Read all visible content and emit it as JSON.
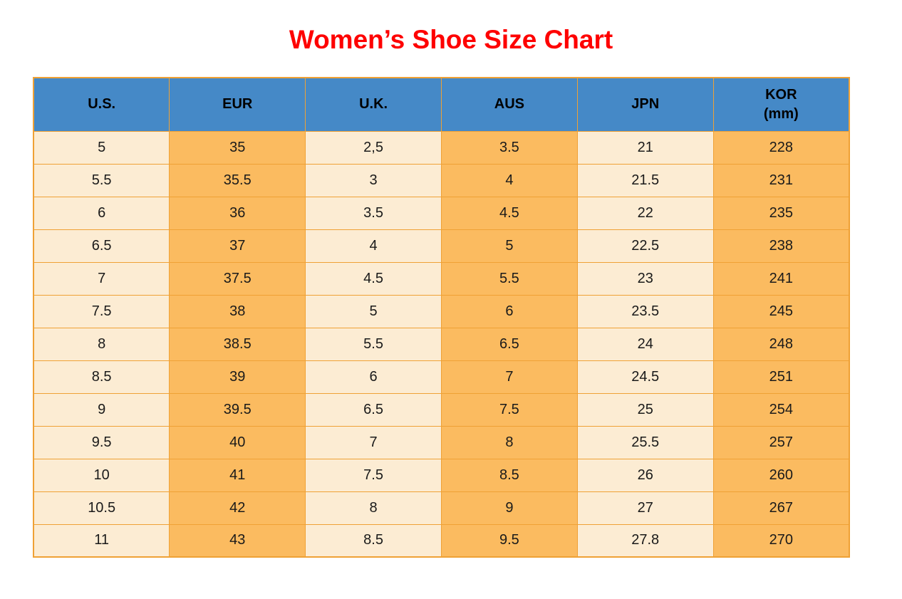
{
  "title": "Women’s Shoe Size Chart",
  "colors": {
    "title_red": "#FE0000",
    "header_blue": "#4589C7",
    "cell_cream": "#FCECD3",
    "cell_orange": "#FBBB60",
    "border_orange": "#EFA135",
    "text_black": "#1A1A1A"
  },
  "chart_data": {
    "type": "table",
    "title": "Women’s Shoe Size Chart",
    "columns": [
      "U.S.",
      "EUR",
      "U.K.",
      "AUS",
      "JPN",
      "KOR (mm)"
    ],
    "headers": [
      {
        "key": "us",
        "lines": [
          "U.S."
        ]
      },
      {
        "key": "eur",
        "lines": [
          "EUR"
        ]
      },
      {
        "key": "uk",
        "lines": [
          "U.K."
        ]
      },
      {
        "key": "aus",
        "lines": [
          "AUS"
        ]
      },
      {
        "key": "jpn",
        "lines": [
          "JPN"
        ]
      },
      {
        "key": "kor-mm",
        "lines": [
          "KOR",
          "(mm)"
        ]
      }
    ],
    "column_styles": [
      "cream",
      "orange",
      "cream",
      "orange",
      "cream",
      "orange"
    ],
    "rows": [
      [
        "5",
        "35",
        "2,5",
        "3.5",
        "21",
        "228"
      ],
      [
        "5.5",
        "35.5",
        "3",
        "4",
        "21.5",
        "231"
      ],
      [
        "6",
        "36",
        "3.5",
        "4.5",
        "22",
        "235"
      ],
      [
        "6.5",
        "37",
        "4",
        "5",
        "22.5",
        "238"
      ],
      [
        "7",
        "37.5",
        "4.5",
        "5.5",
        "23",
        "241"
      ],
      [
        "7.5",
        "38",
        "5",
        "6",
        "23.5",
        "245"
      ],
      [
        "8",
        "38.5",
        "5.5",
        "6.5",
        "24",
        "248"
      ],
      [
        "8.5",
        "39",
        "6",
        "7",
        "24.5",
        "251"
      ],
      [
        "9",
        "39.5",
        "6.5",
        "7.5",
        "25",
        "254"
      ],
      [
        "9.5",
        "40",
        "7",
        "8",
        "25.5",
        "257"
      ],
      [
        "10",
        "41",
        "7.5",
        "8.5",
        "26",
        "260"
      ],
      [
        "10.5",
        "42",
        "8",
        "9",
        "27",
        "267"
      ],
      [
        "11",
        "43",
        "8.5",
        "9.5",
        "27.8",
        "270"
      ]
    ]
  }
}
